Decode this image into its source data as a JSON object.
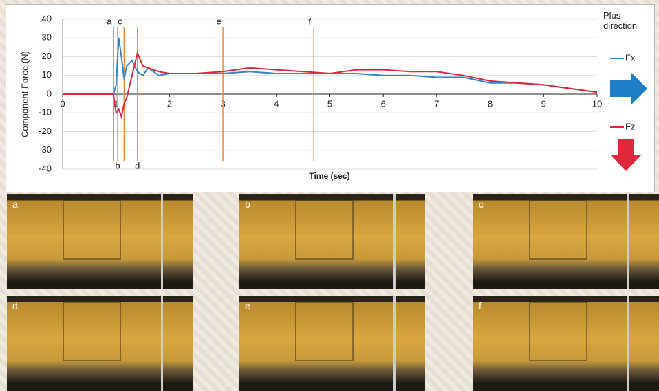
{
  "chart_data": {
    "type": "line",
    "ylabel": "Component Force (N)",
    "xlabel": "Time (sec)",
    "legend_title": "Plus direction",
    "x": [
      0,
      0.95,
      1.0,
      1.05,
      1.1,
      1.15,
      1.2,
      1.3,
      1.4,
      1.5,
      1.6,
      1.8,
      2,
      2.5,
      3,
      3.5,
      4,
      4.5,
      5,
      5.5,
      6,
      6.5,
      7,
      7.5,
      8,
      8.5,
      9,
      9.5,
      10
    ],
    "series": [
      {
        "name": "Fx",
        "color": "#2e86c8",
        "values": [
          0,
          0,
          5,
          30,
          20,
          8,
          15,
          18,
          12,
          10,
          14,
          10,
          11,
          11,
          11,
          12,
          11,
          11,
          11,
          11,
          10,
          10,
          9,
          9,
          6,
          6,
          5,
          3,
          1
        ]
      },
      {
        "name": "Fz",
        "color": "#e0283c",
        "values": [
          0,
          0,
          -10,
          -8,
          -12,
          -5,
          -2,
          10,
          22,
          15,
          14,
          12,
          11,
          11,
          12,
          14,
          13,
          12,
          11,
          13,
          13,
          12,
          12,
          10,
          7,
          6,
          5,
          3,
          1
        ]
      }
    ],
    "events": [
      {
        "label": "a",
        "x": 0.95,
        "side": "top"
      },
      {
        "label": "b",
        "x": 1.03,
        "side": "bottom"
      },
      {
        "label": "c",
        "x": 1.15,
        "side": "top"
      },
      {
        "label": "d",
        "x": 1.4,
        "side": "bottom"
      },
      {
        "label": "e",
        "x": 3,
        "side": "top"
      },
      {
        "label": "f",
        "x": 4.7,
        "side": "top"
      }
    ],
    "xlim": [
      0,
      10
    ],
    "xticks": [
      0,
      1,
      2,
      3,
      4,
      5,
      6,
      7,
      8,
      9,
      10
    ],
    "ylim": [
      -40,
      40
    ],
    "yticks": [
      -40,
      -30,
      -20,
      -10,
      0,
      10,
      20,
      30,
      40
    ],
    "grid": true
  },
  "photos": [
    "a",
    "b",
    "c",
    "d",
    "e",
    "f"
  ]
}
